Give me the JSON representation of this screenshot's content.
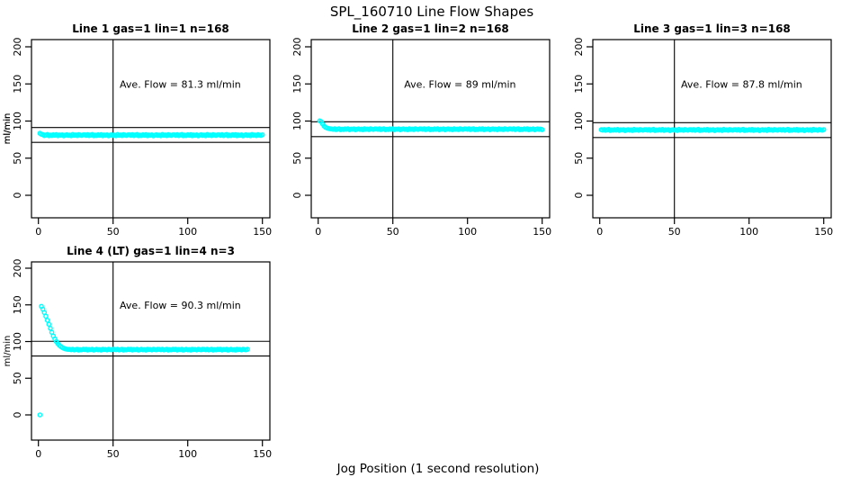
{
  "figure": {
    "title": "SPL_160710  Line Flow Shapes",
    "xlabel": "Jog Position (1 second resolution)",
    "ylabel": "ml/min",
    "point_color": "#00FFFF",
    "line_color": "#000000",
    "background_color": "#FFFFFF"
  },
  "chart_data": {
    "type": "scatter",
    "title": "SPL_160710  Line Flow Shapes",
    "xlabel": "Jog Position (1 second resolution)",
    "ylabel": "ml/min",
    "x_ticks": [
      0,
      50,
      100,
      150
    ],
    "y_ticks": [
      0,
      50,
      100,
      150,
      200
    ],
    "xlim": [
      0,
      155
    ],
    "ylim": [
      0,
      200
    ],
    "grid": false,
    "legend": "none",
    "marker": "open-circle",
    "panels": [
      {
        "title": "Line 1 gas=1 lin=1 n=168",
        "annotation": "Ave. Flow =  81.3  ml/min",
        "avg_flow": 81.3,
        "ref_line_upper": 91.3,
        "ref_line_lower": 71.3,
        "vline_x": 50,
        "x_start": 1,
        "x_step": 1,
        "y": [
          83.5,
          82.2,
          81.7,
          80.4,
          81.2,
          81.9,
          80.2,
          81.1,
          80.5,
          81.6,
          80.8,
          81.8,
          80.3,
          81.3,
          80.9,
          81.5,
          80.1,
          81,
          81.6,
          80.6,
          81.2,
          80.2,
          81.9,
          80.9,
          81.3,
          80.4,
          81.7,
          81.1,
          80.6,
          81.5,
          81.4,
          80.7,
          81.7,
          80.4,
          81.2,
          81.9,
          80.2,
          81.1,
          80.5,
          81.6,
          80.8,
          81.8,
          80.3,
          81.3,
          80.9,
          81.5,
          80.1,
          81,
          81.6,
          80.6,
          81.2,
          80.2,
          81.9,
          80.9,
          81.3,
          80.4,
          81.7,
          81.1,
          80.6,
          81.5,
          81.4,
          80.7,
          81.7,
          80.4,
          81.2,
          81.9,
          80.2,
          81.1,
          80.5,
          81.6,
          80.8,
          81.8,
          80.3,
          81.3,
          80.9,
          81.5,
          80.1,
          81,
          81.6,
          80.6,
          81.2,
          80.2,
          81.9,
          80.9,
          81.3,
          80.4,
          81.7,
          81.1,
          80.6,
          81.5,
          81.4,
          80.7,
          81.7,
          80.4,
          81.2,
          81.9,
          80.2,
          81.1,
          80.5,
          81.6,
          80.8,
          81.8,
          80.3,
          81.3,
          80.9,
          81.5,
          80.1,
          81,
          81.6,
          80.6,
          81.2,
          80.2,
          81.9,
          80.9,
          81.3,
          80.4,
          81.7,
          81.1,
          80.6,
          81.5,
          81.4,
          80.7,
          81.7,
          80.4,
          81.2,
          81.9,
          80.2,
          81.1,
          80.5,
          81.6,
          80.8,
          81.8,
          80.3,
          81.3,
          80.9,
          81.5,
          80.1,
          81,
          81.6,
          80.6,
          81.2,
          80.2,
          81.9,
          80.9,
          81.3,
          80.4,
          81.7,
          81.1,
          80.6,
          81.5
        ]
      },
      {
        "title": "Line 2 gas=1 lin=2 n=168",
        "annotation": "Ave. Flow =  89  ml/min",
        "avg_flow": 89,
        "ref_line_upper": 99,
        "ref_line_lower": 79,
        "vline_x": 50,
        "x_start": 1,
        "x_step": 1,
        "y": [
          100.3,
          99.2,
          96.0,
          93.2,
          91.5,
          90.5,
          90.0,
          89.6,
          89.3,
          88.8,
          89.6,
          88.5,
          89.2,
          89.7,
          88.4,
          89.1,
          88.6,
          89.5,
          88.8,
          89.6,
          88.4,
          89.2,
          88.9,
          89.4,
          88.3,
          89,
          89.5,
          88.7,
          89.2,
          88.4,
          89.7,
          88.9,
          89.2,
          88.5,
          89.6,
          89.1,
          88.7,
          89.4,
          89.3,
          88.8,
          89.6,
          88.5,
          89.2,
          89.7,
          88.4,
          89.1,
          88.6,
          89.5,
          88.8,
          89.6,
          88.4,
          89.2,
          88.9,
          89.4,
          88.3,
          89,
          89.5,
          88.7,
          89.2,
          88.4,
          89.7,
          88.9,
          89.2,
          88.5,
          89.6,
          89.1,
          88.7,
          89.4,
          89.3,
          88.8,
          89.6,
          88.5,
          89.2,
          89.7,
          88.4,
          89.1,
          88.6,
          89.5,
          88.8,
          89.6,
          88.4,
          89.2,
          88.9,
          89.4,
          88.3,
          89,
          89.5,
          88.7,
          89.2,
          88.4,
          89.7,
          88.9,
          89.2,
          88.5,
          89.6,
          89.1,
          88.7,
          89.4,
          89.3,
          88.8,
          89.6,
          88.5,
          89.2,
          89.7,
          88.4,
          89.1,
          88.6,
          89.5,
          88.8,
          89.6,
          88.4,
          89.2,
          88.9,
          89.4,
          88.3,
          89,
          89.5,
          88.7,
          89.2,
          88.4,
          89.7,
          88.9,
          89.2,
          88.5,
          89.6,
          89.1,
          88.7,
          89.4,
          89.3,
          88.8,
          89.6,
          88.5,
          89.2,
          89.7,
          88.4,
          89.1,
          88.6,
          89.5,
          88.8,
          89.6,
          88.4,
          89.2,
          88.9,
          89.4,
          88.3,
          89,
          89.5,
          88.7,
          89.2,
          88.4
        ]
      },
      {
        "title": "Line 3 gas=1 lin=3 n=168",
        "annotation": "Ave. Flow =  87.8  ml/min",
        "avg_flow": 87.8,
        "ref_line_upper": 97.8,
        "ref_line_lower": 77.8,
        "vline_x": 50,
        "x_start": 1,
        "x_step": 1,
        "y": [
          88.4,
          87.7,
          88.6,
          87.5,
          88.2,
          88.8,
          87.3,
          88.1,
          87.6,
          88.5,
          87.8,
          88.7,
          87.4,
          88.3,
          87.9,
          88.5,
          87.2,
          88,
          88.5,
          87.6,
          88.2,
          87.3,
          88.8,
          87.9,
          88.3,
          87.5,
          88.6,
          88.1,
          87.6,
          88.5,
          88.4,
          87.7,
          88.6,
          87.5,
          88.2,
          88.8,
          87.3,
          88.1,
          87.6,
          88.5,
          87.8,
          88.7,
          87.4,
          88.3,
          87.9,
          88.5,
          87.2,
          88,
          88.5,
          87.6,
          88.2,
          87.3,
          88.8,
          87.9,
          88.3,
          87.5,
          88.6,
          88.1,
          87.6,
          88.5,
          88.4,
          87.7,
          88.6,
          87.5,
          88.2,
          88.8,
          87.3,
          88.1,
          87.6,
          88.5,
          87.8,
          88.7,
          87.4,
          88.3,
          87.9,
          88.5,
          87.2,
          88,
          88.5,
          87.6,
          88.2,
          87.3,
          88.8,
          87.9,
          88.3,
          87.5,
          88.6,
          88.1,
          87.6,
          88.5,
          88.4,
          87.7,
          88.6,
          87.5,
          88.2,
          88.8,
          87.3,
          88.1,
          87.6,
          88.5,
          87.8,
          88.7,
          87.4,
          88.3,
          87.9,
          88.5,
          87.2,
          88,
          88.5,
          87.6,
          88.2,
          87.3,
          88.8,
          87.9,
          88.3,
          87.5,
          88.6,
          88.1,
          87.6,
          88.5,
          88.4,
          87.7,
          88.6,
          87.5,
          88.2,
          88.8,
          87.3,
          88.1,
          87.6,
          88.5,
          87.8,
          88.7,
          87.4,
          88.3,
          87.9,
          88.5,
          87.2,
          88,
          88.5,
          87.6,
          88.2,
          87.3,
          88.8,
          87.9,
          88.3,
          87.5,
          88.6,
          88.1,
          87.6,
          88.5
        ]
      },
      {
        "title": "Line 4 (LT) gas=1 lin=4 n=3",
        "annotation": "Ave. Flow =  90.3  ml/min",
        "avg_flow": 90.3,
        "ref_line_upper": 100.3,
        "ref_line_lower": 80.3,
        "vline_x": 50,
        "x_start": 1,
        "x_step": 1,
        "y": [
          0,
          148,
          144,
          139.5,
          134.5,
          129,
          123.5,
          118,
          112.5,
          107.5,
          103.5,
          100,
          97.2,
          95,
          93.2,
          91.8,
          90.8,
          90.1,
          89.6,
          89.3,
          89.3,
          88.8,
          89.5,
          88.6,
          89.1,
          89.6,
          88.4,
          89.1,
          88.7,
          89.4,
          88.9,
          89.6,
          88.5,
          89.2,
          88.9,
          89.4,
          88.4,
          89,
          89.4,
          88.7,
          89.1,
          88.4,
          89.6,
          88.9,
          89.2,
          88.6,
          89.5,
          89.1,
          88.7,
          89.4,
          89.3,
          88.8,
          89.5,
          88.6,
          89.1,
          89.6,
          88.4,
          89.1,
          88.7,
          89.4,
          88.9,
          89.6,
          88.5,
          89.2,
          88.9,
          89.4,
          88.4,
          89,
          89.4,
          88.7,
          89.1,
          88.4,
          89.6,
          88.9,
          89.2,
          88.6,
          89.5,
          89.1,
          88.7,
          89.4,
          89.3,
          88.8,
          89.5,
          88.6,
          89.1,
          89.6,
          88.4,
          89.1,
          88.7,
          89.4,
          88.9,
          89.6,
          88.5,
          89.2,
          88.9,
          89.4,
          88.4,
          89,
          89.4,
          88.7,
          89.1,
          88.4,
          89.6,
          88.9,
          89.2,
          88.6,
          89.5,
          89.1,
          88.7,
          89.4,
          89.3,
          88.8,
          89.5,
          88.6,
          89.1,
          89.6,
          88.4,
          89.1,
          88.7,
          89.4,
          88.9,
          89.6,
          88.5,
          89.2,
          88.9,
          89.4,
          88.4,
          89,
          89.4,
          88.7,
          89.1,
          88.4,
          89.6,
          88.9,
          89.2,
          88.6,
          89.5,
          89.1,
          88.7,
          89.4
        ]
      }
    ]
  }
}
